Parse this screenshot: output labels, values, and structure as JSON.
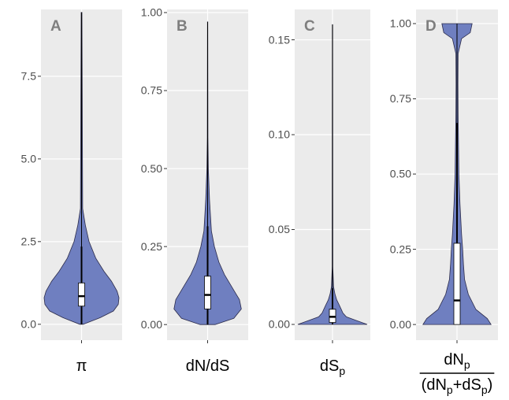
{
  "chart_data": [
    {
      "type": "violin",
      "label": "A",
      "x_label": [
        [
          {
            "text": "π"
          }
        ]
      ],
      "color": "#6f7fc0",
      "grid": true,
      "ylim": [
        -0.48,
        9.52
      ],
      "yticks": [
        {
          "value": 0,
          "label": "0.0"
        },
        {
          "value": 2.5,
          "label": "2.5"
        },
        {
          "value": 5,
          "label": "5.0"
        },
        {
          "value": 7.5,
          "label": "7.5"
        }
      ],
      "violin": {
        "y": [
          0,
          0.2,
          0.4,
          0.6,
          0.8,
          1.0,
          1.3,
          1.6,
          2.0,
          2.5,
          3.0,
          3.5,
          9.43
        ],
        "width": [
          0.05,
          0.5,
          0.85,
          0.98,
          1.0,
          0.95,
          0.8,
          0.6,
          0.38,
          0.2,
          0.1,
          0.03,
          0.01
        ]
      },
      "box": {
        "q1": 0.55,
        "median": 0.85,
        "q3": 1.25,
        "lower": 0,
        "upper": 2.35
      }
    },
    {
      "type": "violin",
      "label": "B",
      "x_label": [
        [
          {
            "text": "dN/dS"
          }
        ]
      ],
      "color": "#6f7fc0",
      "grid": true,
      "ylim": [
        -0.05,
        1.01
      ],
      "yticks": [
        {
          "value": 0,
          "label": "0.00"
        },
        {
          "value": 0.25,
          "label": "0.25"
        },
        {
          "value": 0.5,
          "label": "0.50"
        },
        {
          "value": 0.75,
          "label": "0.75"
        },
        {
          "value": 1,
          "label": "1.00"
        }
      ],
      "violin": {
        "y": [
          0,
          0.02,
          0.05,
          0.08,
          0.1,
          0.13,
          0.16,
          0.2,
          0.25,
          0.3,
          0.4,
          0.5,
          0.6,
          0.97
        ],
        "width": [
          0.2,
          0.7,
          0.9,
          0.85,
          0.75,
          0.6,
          0.45,
          0.3,
          0.18,
          0.1,
          0.05,
          0.02,
          0.008,
          0.005
        ]
      },
      "box": {
        "q1": 0.05,
        "median": 0.095,
        "q3": 0.155,
        "lower": 0,
        "upper": 0.315
      }
    },
    {
      "type": "violin",
      "label": "C",
      "x_label": [
        [
          {
            "text": "dS"
          },
          {
            "text": "p",
            "sub": true
          }
        ]
      ],
      "color": "#6f7fc0",
      "grid": true,
      "ylim": [
        -0.0083,
        0.166
      ],
      "yticks": [
        {
          "value": 0,
          "label": "0.00"
        },
        0.05,
        {
          "value": 0.1,
          "label": "0.10"
        },
        0.15
      ],
      "violin": {
        "y": [
          0,
          0.002,
          0.004,
          0.006,
          0.008,
          0.01,
          0.013,
          0.016,
          0.02,
          0.03,
          0.158
        ],
        "width": [
          1.0,
          0.7,
          0.4,
          0.3,
          0.25,
          0.2,
          0.12,
          0.07,
          0.03,
          0.01,
          0.005
        ]
      },
      "box": {
        "q1": 0.001,
        "median": 0.004,
        "q3": 0.008,
        "lower": 0,
        "upper": 0.019
      }
    },
    {
      "type": "violin",
      "label": "D",
      "x_label": [
        [
          {
            "text": "dN"
          },
          {
            "text": "p",
            "sub": true
          }
        ],
        [
          {
            "text": "(dN"
          },
          {
            "text": "p",
            "sub": true
          },
          {
            "text": "+dS"
          },
          {
            "text": "p",
            "sub": true
          },
          {
            "text": ")"
          }
        ]
      ],
      "color": "#6f7fc0",
      "grid": true,
      "ylim": [
        -0.052,
        1.047
      ],
      "yticks": [
        {
          "value": 0,
          "label": "0.00"
        },
        0.25,
        {
          "value": 0.5,
          "label": "0.50"
        },
        0.75,
        {
          "value": 1,
          "label": "1.00"
        }
      ],
      "violin": {
        "y": [
          0,
          0.02,
          0.05,
          0.1,
          0.15,
          0.2,
          0.25,
          0.3,
          0.4,
          0.5,
          0.6,
          0.7,
          0.8,
          0.9,
          0.95,
          0.97,
          1.0
        ],
        "width": [
          0.9,
          0.8,
          0.5,
          0.3,
          0.2,
          0.17,
          0.15,
          0.12,
          0.08,
          0.05,
          0.04,
          0.03,
          0.025,
          0.03,
          0.12,
          0.35,
          0.4
        ]
      },
      "box": {
        "q1": 0,
        "median": 0.08,
        "q3": 0.27,
        "lower": 0,
        "upper": 0.67
      }
    }
  ]
}
